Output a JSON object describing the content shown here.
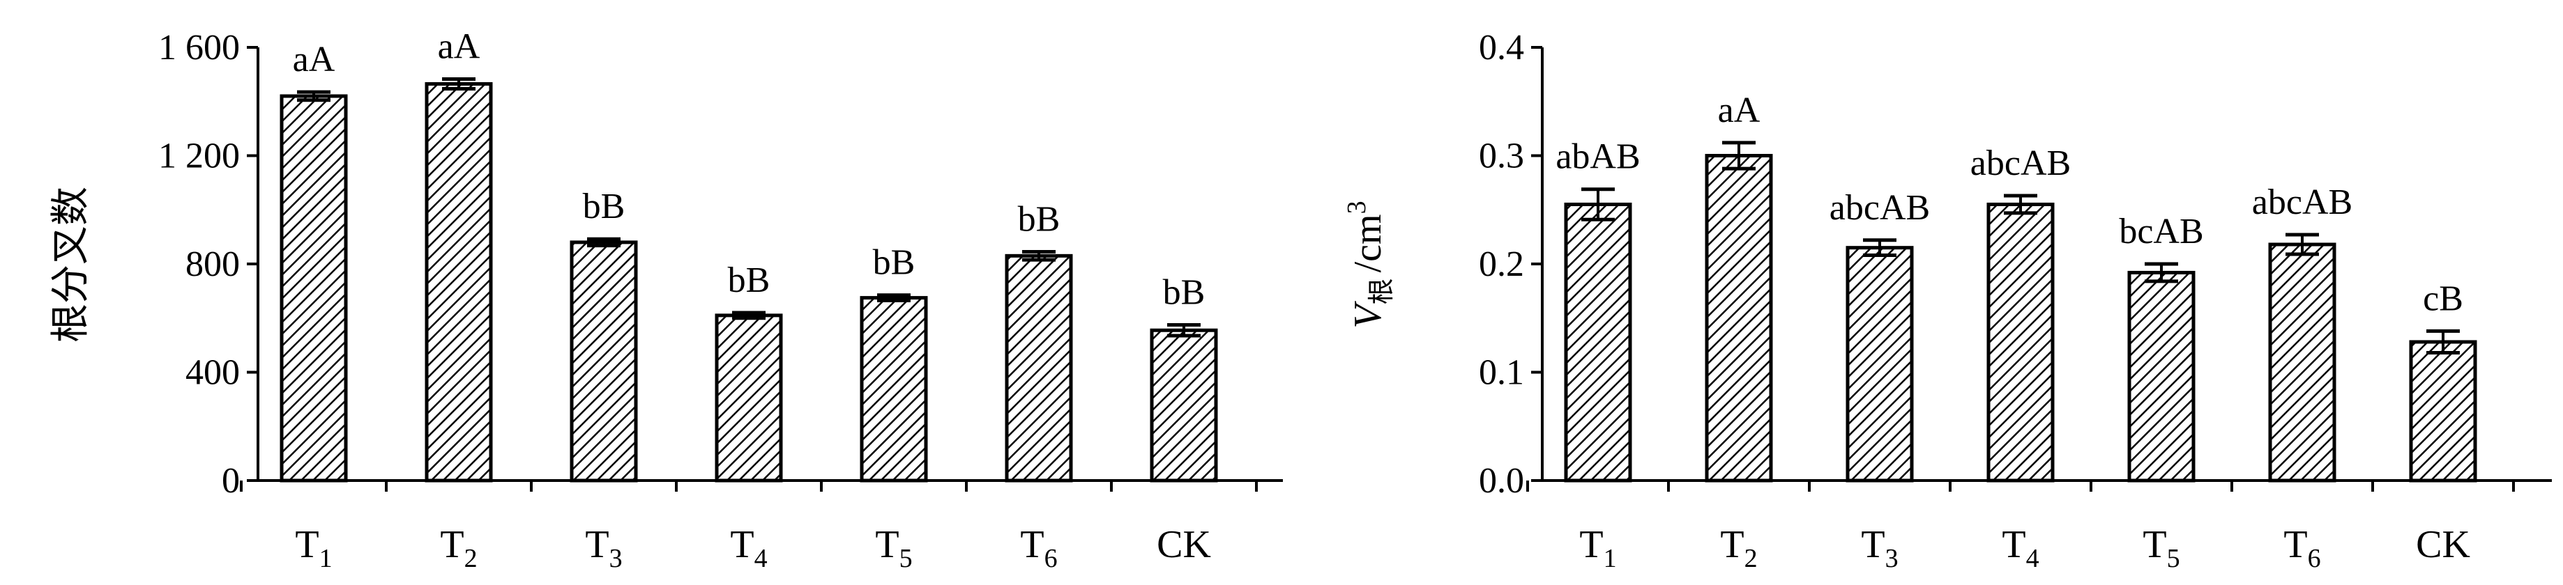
{
  "chart_data": [
    {
      "type": "bar",
      "categories": [
        {
          "base": "T",
          "sub": "1"
        },
        {
          "base": "T",
          "sub": "2"
        },
        {
          "base": "T",
          "sub": "3"
        },
        {
          "base": "T",
          "sub": "4"
        },
        {
          "base": "T",
          "sub": "5"
        },
        {
          "base": "T",
          "sub": "6"
        },
        {
          "base": "CK",
          "sub": ""
        }
      ],
      "values": [
        1420,
        1465,
        880,
        610,
        675,
        830,
        555
      ],
      "errors": [
        15,
        18,
        12,
        10,
        10,
        15,
        20
      ],
      "significance": [
        "aA",
        "aA",
        "bB",
        "bB",
        "bB",
        "bB",
        "bB"
      ],
      "ylabel": "根分叉数",
      "ylim": [
        0,
        1600
      ],
      "yticks": [
        0,
        400,
        800,
        1200,
        1600
      ],
      "ytick_labels": [
        "0",
        "400",
        "800",
        "1 200",
        "1 600"
      ],
      "pattern": "diagonal-hatch",
      "grid": false
    },
    {
      "type": "bar",
      "categories": [
        {
          "base": "T",
          "sub": "1"
        },
        {
          "base": "T",
          "sub": "2"
        },
        {
          "base": "T",
          "sub": "3"
        },
        {
          "base": "T",
          "sub": "4"
        },
        {
          "base": "T",
          "sub": "5"
        },
        {
          "base": "T",
          "sub": "6"
        },
        {
          "base": "CK",
          "sub": ""
        }
      ],
      "values": [
        0.255,
        0.3,
        0.215,
        0.255,
        0.192,
        0.218,
        0.128
      ],
      "errors": [
        0.014,
        0.012,
        0.007,
        0.008,
        0.008,
        0.009,
        0.01
      ],
      "significance": [
        "abAB",
        "aA",
        "abcAB",
        "abcAB",
        "bcAB",
        "abcAB",
        "cB"
      ],
      "ylabel": {
        "main": "V",
        "sub": "根",
        "unit": "/cm",
        "sup": "3"
      },
      "ylim": [
        0,
        0.4
      ],
      "yticks": [
        0,
        0.1,
        0.2,
        0.3,
        0.4
      ],
      "ytick_labels": [
        "0.0",
        "0.1",
        "0.2",
        "0.3",
        "0.4"
      ],
      "pattern": "diagonal-hatch",
      "grid": false
    }
  ]
}
